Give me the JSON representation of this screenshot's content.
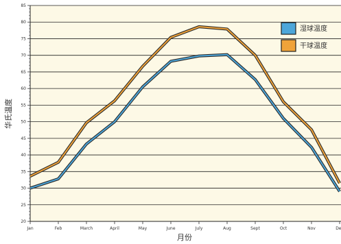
{
  "chart_data": {
    "type": "line",
    "categories": [
      "Jan",
      "Feb",
      "March",
      "April",
      "May",
      "June",
      "July",
      "Aug",
      "Sept",
      "Oct",
      "Nov",
      "Dec"
    ],
    "series": [
      {
        "name": "湿球温度",
        "color": "#4da6d9",
        "values": [
          30,
          32.8,
          43.3,
          50,
          60.5,
          68.2,
          69.8,
          70.2,
          62.7,
          51,
          42.3,
          29
        ]
      },
      {
        "name": "干球温度",
        "color": "#f0a33a",
        "values": [
          33.6,
          37.8,
          49.7,
          56.3,
          66.7,
          75.4,
          78.6,
          77.9,
          70,
          56,
          47.6,
          31.5
        ]
      }
    ],
    "xlabel": "月份",
    "ylabel": "华氏温度",
    "ylim": [
      20,
      85
    ],
    "yticks": [
      20,
      25,
      30,
      35,
      40,
      45,
      50,
      55,
      60,
      65,
      70,
      75,
      80,
      85
    ],
    "grid": true,
    "legend_position": "top-right",
    "plot_background": "#fdf9e6"
  }
}
